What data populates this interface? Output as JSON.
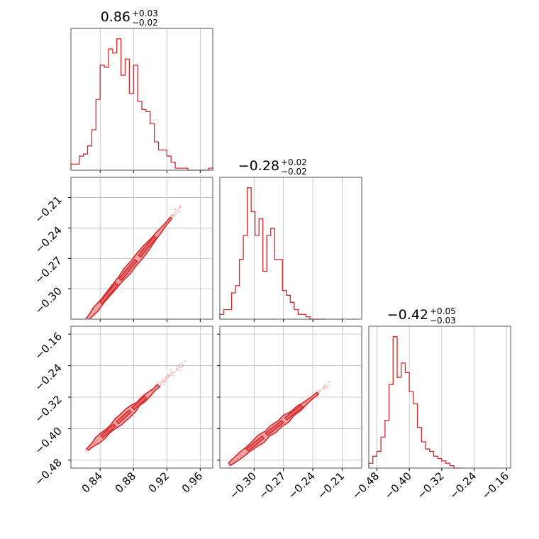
{
  "colors": {
    "series": "#d62728",
    "grid": "#bdbdbd",
    "frame": "#555555",
    "faint_points": "#f4b6b6",
    "fill_light": "#ee8c8c"
  },
  "chart_data": [
    {
      "id": "hist-p1",
      "type": "bar",
      "style": "step-histogram",
      "title_main": "0.86",
      "title_sup": "+0.03",
      "title_sub": "−0.02",
      "xlim": [
        0.805,
        0.975
      ],
      "xticks": [
        0.84,
        0.88,
        0.92,
        0.96
      ],
      "bin_edges": [
        0.805,
        0.81,
        0.815,
        0.82,
        0.825,
        0.83,
        0.835,
        0.84,
        0.845,
        0.85,
        0.855,
        0.86,
        0.865,
        0.87,
        0.875,
        0.88,
        0.885,
        0.89,
        0.895,
        0.9,
        0.905,
        0.91,
        0.915,
        0.92,
        0.925,
        0.93,
        0.935,
        0.94,
        0.945,
        0.95,
        0.955,
        0.96,
        0.965,
        0.97,
        0.975
      ],
      "counts": [
        3,
        3,
        7,
        8,
        12,
        20,
        35,
        52,
        51,
        60,
        58,
        65,
        47,
        55,
        38,
        52,
        34,
        30,
        29,
        23,
        14,
        10,
        10,
        7,
        4,
        1,
        1,
        1,
        0,
        0,
        0,
        0,
        0,
        1
      ],
      "grid": true
    },
    {
      "id": "hist-p2",
      "type": "bar",
      "style": "step-histogram",
      "title_main": "−0.28",
      "title_sup": "+0.02",
      "title_sub": "−0.02",
      "xlim": [
        -0.335,
        -0.19
      ],
      "xticks": [
        -0.3,
        -0.27,
        -0.24,
        -0.21
      ],
      "bin_edges": [
        -0.335,
        -0.331,
        -0.327,
        -0.323,
        -0.319,
        -0.315,
        -0.311,
        -0.307,
        -0.303,
        -0.299,
        -0.295,
        -0.291,
        -0.287,
        -0.283,
        -0.279,
        -0.275,
        -0.271,
        -0.267,
        -0.263,
        -0.259,
        -0.255,
        -0.251,
        -0.247,
        -0.243,
        -0.239,
        -0.235,
        -0.231,
        -0.227
      ],
      "counts": [
        2,
        4,
        4,
        11,
        14,
        25,
        35,
        55,
        45,
        35,
        42,
        20,
        35,
        38,
        25,
        25,
        12,
        10,
        7,
        4,
        2,
        2,
        1,
        0,
        0,
        0,
        0
      ],
      "grid": true
    },
    {
      "id": "hist-p3",
      "type": "bar",
      "style": "step-histogram",
      "title_main": "−0.42",
      "title_sup": "+0.05",
      "title_sub": "−0.03",
      "xlim": [
        -0.5,
        -0.15
      ],
      "xticks": [
        -0.48,
        -0.4,
        -0.32,
        -0.24,
        -0.16
      ],
      "bin_edges": [
        -0.5,
        -0.49,
        -0.48,
        -0.47,
        -0.46,
        -0.45,
        -0.44,
        -0.43,
        -0.42,
        -0.41,
        -0.4,
        -0.39,
        -0.38,
        -0.37,
        -0.36,
        -0.35,
        -0.34,
        -0.33,
        -0.32,
        -0.31,
        -0.3,
        -0.29,
        -0.28,
        -0.27
      ],
      "counts": [
        2,
        5,
        7,
        13,
        20,
        35,
        55,
        38,
        44,
        40,
        32,
        27,
        17,
        11,
        8,
        7,
        5,
        4,
        3,
        2,
        1,
        0,
        0
      ],
      "grid": true
    },
    {
      "id": "scatter-p1-p2",
      "type": "scatter",
      "xlim": [
        0.805,
        0.975
      ],
      "ylim": [
        -0.33,
        -0.19
      ],
      "xticks": [
        0.84,
        0.88,
        0.92,
        0.96
      ],
      "yticks": [
        -0.21,
        -0.24,
        -0.27,
        -0.3
      ],
      "relation": {
        "slope": 1.0,
        "intercept": -1.155,
        "x_from": 0.82,
        "x_to": 0.925,
        "scatter_to": 0.94
      },
      "grid": true
    },
    {
      "id": "scatter-p1-p3",
      "type": "scatter",
      "xlim": [
        0.805,
        0.975
      ],
      "ylim": [
        -0.5,
        -0.14
      ],
      "xticks": [
        0.84,
        0.88,
        0.92,
        0.96
      ],
      "yticks": [
        -0.16,
        -0.24,
        -0.32,
        -0.4,
        -0.48
      ],
      "relation": {
        "slope": 1.9,
        "intercept": -2.02,
        "x_from": 0.825,
        "x_to": 0.91,
        "scatter_to": 0.945
      },
      "grid": true
    },
    {
      "id": "scatter-p2-p3",
      "type": "scatter",
      "xlim": [
        -0.335,
        -0.19
      ],
      "ylim": [
        -0.5,
        -0.14
      ],
      "xticks": [
        -0.3,
        -0.27,
        -0.24,
        -0.21
      ],
      "yticks": [
        -0.16,
        -0.24,
        -0.32,
        -0.4,
        -0.48
      ],
      "relation": {
        "slope": 2.0,
        "intercept": 0.16,
        "x_from": -0.325,
        "x_to": -0.235,
        "scatter_to": -0.22
      },
      "grid": true
    }
  ]
}
